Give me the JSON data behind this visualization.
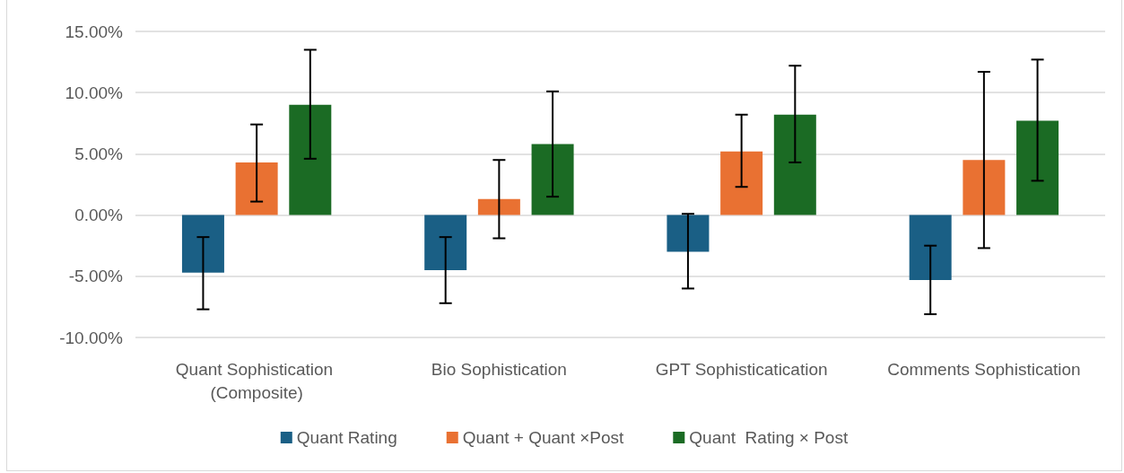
{
  "chart_data": {
    "type": "bar",
    "categories": [
      "Quant Sophistication (Composite)",
      "Bio Sophistication",
      "GPT Sophisticatication",
      "Comments Sophistication"
    ],
    "series": [
      {
        "name": "Quant Rating",
        "color": "#1a5f85",
        "values": [
          -4.7,
          -4.5,
          -3.0,
          -5.3
        ],
        "errors": [
          [
            -7.7,
            -1.8
          ],
          [
            -7.2,
            -1.8
          ],
          [
            -6.0,
            0.1
          ],
          [
            -8.1,
            -2.5
          ]
        ]
      },
      {
        "name": "Quant + Quant ×Post",
        "color": "#e97132",
        "values": [
          4.3,
          1.3,
          5.2,
          4.5
        ],
        "errors": [
          [
            1.1,
            7.4
          ],
          [
            -1.9,
            4.5
          ],
          [
            2.3,
            8.2
          ],
          [
            -2.7,
            11.7
          ]
        ]
      },
      {
        "name": "Quant  Rating × Post",
        "color": "#1b6b24",
        "values": [
          9.0,
          5.8,
          8.2,
          7.7
        ],
        "errors": [
          [
            4.6,
            13.5
          ],
          [
            1.5,
            10.1
          ],
          [
            4.3,
            12.2
          ],
          [
            2.8,
            12.7
          ]
        ]
      }
    ],
    "ylim": [
      -10,
      15
    ],
    "yticks": [
      {
        "value": -10,
        "label": "-10.00%"
      },
      {
        "value": -5,
        "label": "-5.00%"
      },
      {
        "value": 0,
        "label": "0.00%"
      },
      {
        "value": 5,
        "label": "5.00%"
      },
      {
        "value": 10,
        "label": "10.00%"
      },
      {
        "value": 15,
        "label": "15.00%"
      }
    ],
    "grid": "y",
    "legend": "bottom"
  }
}
